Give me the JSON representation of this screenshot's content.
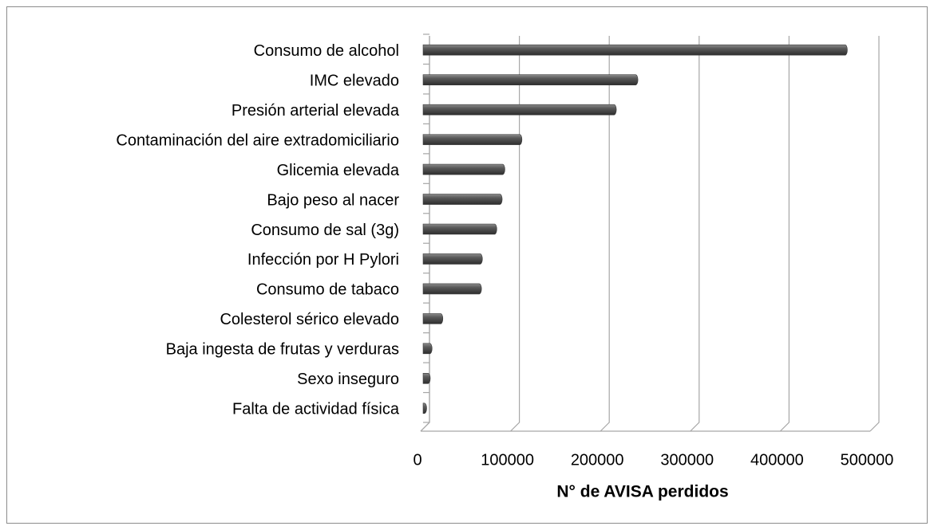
{
  "chart_data": {
    "type": "bar",
    "orientation": "horizontal",
    "x_label": "N° de AVISA perdidos",
    "categories": [
      "Consumo de alcohol",
      "IMC elevado",
      "Presión arterial elevada",
      "Contaminación del aire extradomiciliario",
      "Glicemia elevada",
      "Bajo peso al nacer",
      "Consumo de sal (3g)",
      "Infección por H Pylori",
      "Consumo de tabaco",
      "Colesterol sérico elevado",
      "Baja ingesta de frutas y verduras",
      "Sexo inseguro",
      "Falta de actividad física"
    ],
    "values": [
      472000,
      239000,
      215000,
      110000,
      91000,
      88000,
      82000,
      66000,
      65000,
      22000,
      10000,
      8000,
      4000
    ],
    "color": "#595959",
    "xlim": [
      0,
      500000
    ],
    "xticks": [
      0,
      100000,
      200000,
      300000,
      400000,
      500000
    ],
    "grid": true
  }
}
